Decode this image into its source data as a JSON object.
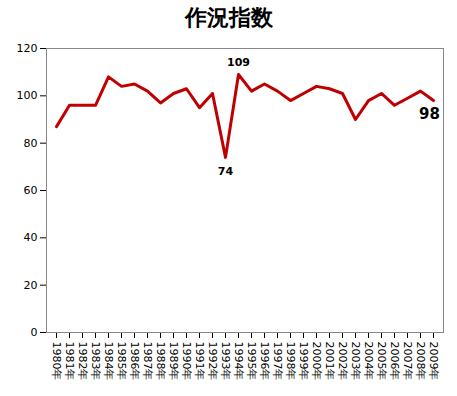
{
  "chart_data": {
    "type": "line",
    "title": "作況指数",
    "categories": [
      "1980年",
      "1981年",
      "1982年",
      "1983年",
      "1984年",
      "1985年",
      "1986年",
      "1987年",
      "1988年",
      "1989年",
      "1990年",
      "1991年",
      "1992年",
      "1993年",
      "1994年",
      "1995年",
      "1996年",
      "1997年",
      "1998年",
      "1999年",
      "2000年",
      "2001年",
      "2002年",
      "2003年",
      "2004年",
      "2005年",
      "2006年",
      "2007年",
      "2008年",
      "2009年"
    ],
    "values": [
      87,
      96,
      96,
      96,
      108,
      104,
      105,
      102,
      97,
      101,
      103,
      95,
      101,
      74,
      109,
      102,
      105,
      102,
      98,
      101,
      104,
      103,
      101,
      90,
      98,
      101,
      96,
      99,
      102,
      98
    ],
    "value_labels": [
      null,
      null,
      null,
      null,
      null,
      null,
      null,
      null,
      null,
      null,
      null,
      null,
      null,
      "74",
      "109",
      null,
      null,
      null,
      null,
      null,
      null,
      null,
      null,
      null,
      null,
      null,
      null,
      null,
      null,
      "98"
    ],
    "data_labels": true,
    "color": "#c00000",
    "ylim": [
      0,
      120
    ],
    "yticks": [
      0,
      20,
      40,
      60,
      80,
      100,
      120
    ],
    "grid": false
  }
}
